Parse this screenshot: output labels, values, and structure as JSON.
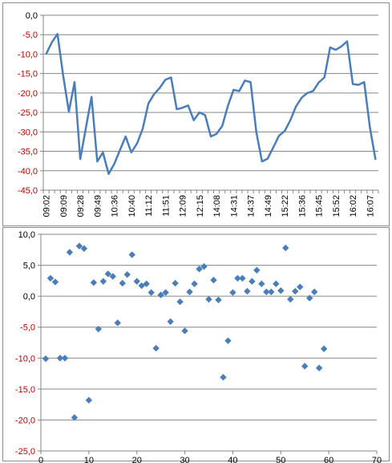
{
  "chart_data": [
    {
      "type": "line",
      "x_tick_labels": [
        "09:02",
        "09:09",
        "09:28",
        "09:49",
        "10:36",
        "10:40",
        "11:12",
        "11:51",
        "12:09",
        "12:15",
        "14:08",
        "14:31",
        "14:37",
        "14:49",
        "15:22",
        "15:36",
        "15:45",
        "15:52",
        "16:02",
        "16:07"
      ],
      "y_tick_labels": [
        "0,0",
        "-5,0",
        "-10,0",
        "-15,0",
        "-20,0",
        "-25,0",
        "-30,0",
        "-35,0",
        "-40,0",
        "-45,0"
      ],
      "ylim": [
        -45,
        0
      ],
      "grid": true,
      "series": [
        {
          "color": "#4a7ebb",
          "values": [
            -10,
            -7,
            -4.8,
            -15.5,
            -24.8,
            -17.2,
            -37,
            -29,
            -21,
            -37.6,
            -35.3,
            -40.8,
            -38.2,
            -34.7,
            -31.2,
            -35.3,
            -33,
            -29.2,
            -22.7,
            -20.3,
            -18.7,
            -16.6,
            -16,
            -24.2,
            -23.8,
            -23.2,
            -27,
            -25,
            -25.7,
            -31.2,
            -30.5,
            -28.5,
            -23.3,
            -19.2,
            -19.5,
            -16.8,
            -17.2,
            -30,
            -37.6,
            -36.9,
            -34,
            -31,
            -29.8,
            -27,
            -23.4,
            -21.2,
            -20,
            -19.5,
            -17.3,
            -16,
            -8.3,
            -8.9,
            -8,
            -6.7,
            -17.7,
            -17.9,
            -17.2,
            -28.8,
            -37.2
          ]
        }
      ]
    },
    {
      "type": "scatter",
      "x_tick_labels": [
        "0",
        "10",
        "20",
        "30",
        "40",
        "50",
        "60",
        "70"
      ],
      "y_tick_labels": [
        "10,0",
        "5,0",
        "0,0",
        "-5,0",
        "-10,0",
        "-15,0",
        "-20,0",
        "-25,0"
      ],
      "xlim": [
        0,
        70
      ],
      "ylim": [
        -25,
        10
      ],
      "grid": true,
      "marker": "diamond",
      "color": "#4a7ebb",
      "points": [
        [
          1,
          -10.1
        ],
        [
          2,
          2.9
        ],
        [
          3,
          2.3
        ],
        [
          4,
          -10
        ],
        [
          5,
          -10
        ],
        [
          6,
          7.1
        ],
        [
          7,
          -19.6
        ],
        [
          8,
          8.1
        ],
        [
          9,
          7.7
        ],
        [
          10,
          -16.8
        ],
        [
          11,
          2.2
        ],
        [
          12,
          -5.3
        ],
        [
          13,
          2.4
        ],
        [
          14,
          3.6
        ],
        [
          15,
          3.2
        ],
        [
          16,
          -4.3
        ],
        [
          17,
          2.1
        ],
        [
          18,
          3.5
        ],
        [
          19,
          6.7
        ],
        [
          20,
          2.4
        ],
        [
          21,
          1.7
        ],
        [
          22,
          2
        ],
        [
          23,
          0.6
        ],
        [
          24,
          -8.4
        ],
        [
          25,
          0.2
        ],
        [
          26,
          0.6
        ],
        [
          27,
          -4.1
        ],
        [
          28,
          2.1
        ],
        [
          29,
          -0.9
        ],
        [
          30,
          -5.6
        ],
        [
          31,
          0.7
        ],
        [
          32,
          2
        ],
        [
          33,
          4.4
        ],
        [
          34,
          4.8
        ],
        [
          35,
          -0.5
        ],
        [
          36,
          2.6
        ],
        [
          37,
          -0.6
        ],
        [
          38,
          -13.1
        ],
        [
          39,
          -7.2
        ],
        [
          40,
          0.6
        ],
        [
          41,
          2.9
        ],
        [
          42,
          2.9
        ],
        [
          43,
          0.8
        ],
        [
          44,
          2.4
        ],
        [
          45,
          4.2
        ],
        [
          46,
          2
        ],
        [
          47,
          0.7
        ],
        [
          48,
          0.7
        ],
        [
          49,
          2
        ],
        [
          50,
          0.9
        ],
        [
          51,
          7.8
        ],
        [
          52,
          -0.5
        ],
        [
          53,
          0.8
        ],
        [
          54,
          1.5
        ],
        [
          55,
          -11.3
        ],
        [
          56,
          -0.3
        ],
        [
          57,
          0.7
        ],
        [
          58,
          -11.6
        ],
        [
          59,
          -8.5
        ]
      ]
    }
  ]
}
